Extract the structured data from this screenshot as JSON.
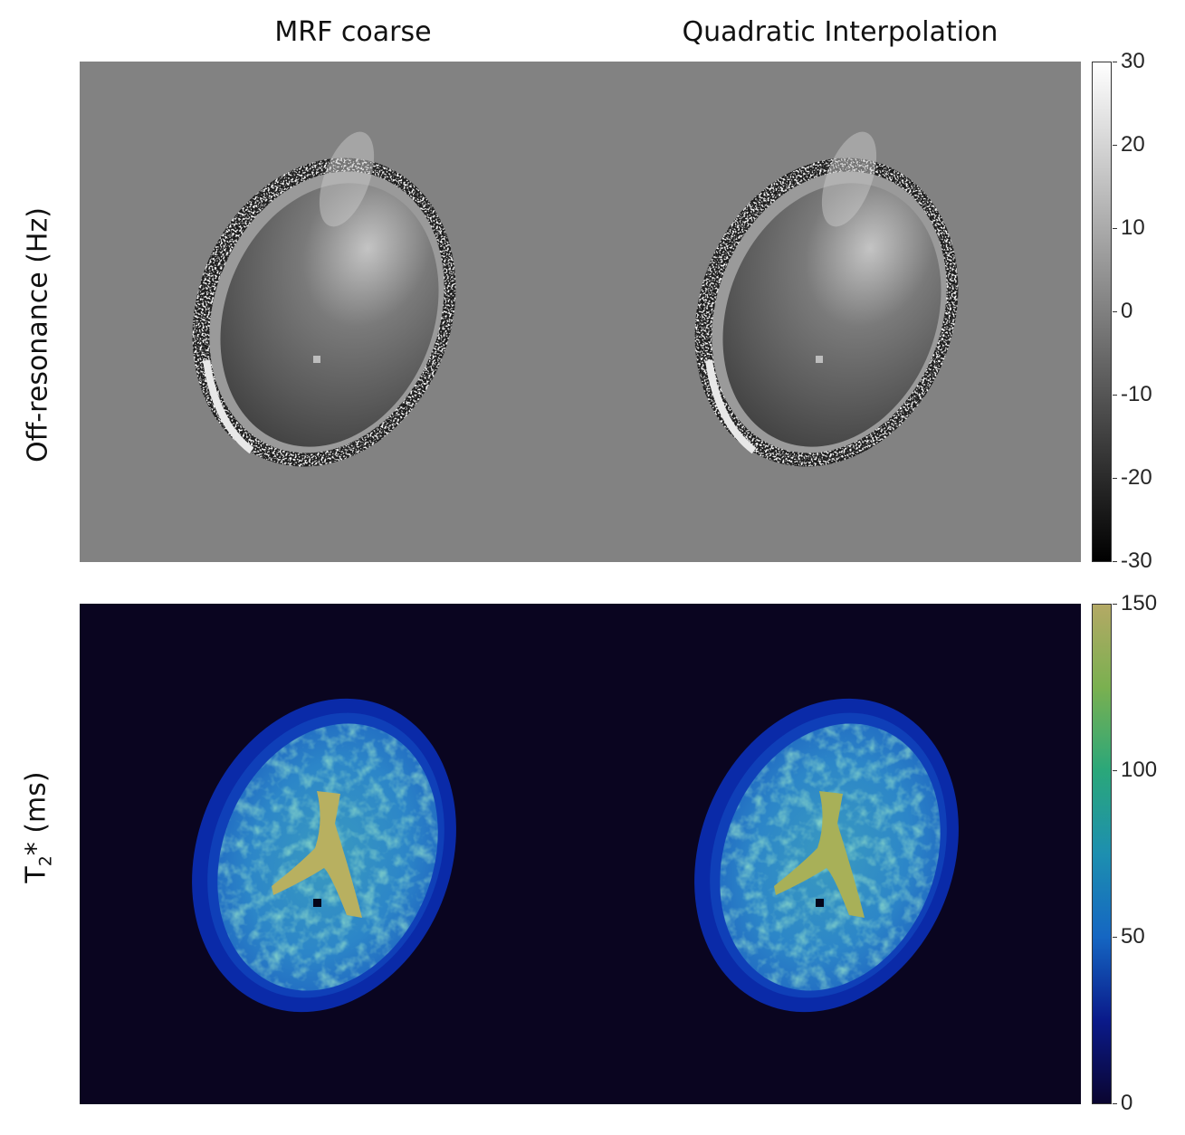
{
  "columns": {
    "left_title": "MRF coarse",
    "right_title": "Quadratic Interpolation"
  },
  "rows": {
    "top_label": "Off-resonance (Hz)",
    "bottom_label_main": "T",
    "bottom_label_sub": "2",
    "bottom_label_rest": "* (ms)"
  },
  "colorbars": {
    "top": {
      "colormap": "gray",
      "range": [
        -30,
        30
      ],
      "ticks": [
        "30",
        "20",
        "10",
        "0",
        "-10",
        "-20",
        "-30"
      ]
    },
    "bottom": {
      "colormap": "dark-blue-to-khaki",
      "range": [
        0,
        150
      ],
      "ticks": [
        "150",
        "100",
        "50",
        "0"
      ],
      "colors": [
        "#0a0530",
        "#0a1a8a",
        "#1566c2",
        "#1d8fb0",
        "#2aa77a",
        "#7ab050",
        "#b4a965"
      ]
    }
  },
  "colors": {
    "offres_background": "#828282",
    "t2_background": "#0a0520",
    "ventricle": "#b8b060",
    "brain_tissue": "#2e8ac4"
  }
}
